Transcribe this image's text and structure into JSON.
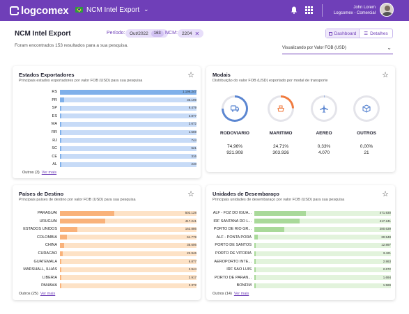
{
  "header": {
    "brand": "logcomex",
    "product": "NCM Intel Export",
    "user_name": "John Lorem",
    "user_company": "Logcomex - Comercial",
    "colors": {
      "primary": "#6f3fb8"
    }
  },
  "page": {
    "title": "NCM Intel Export",
    "period_label": "Período:",
    "period_value": "Out/2022",
    "period_badge": "163",
    "ncm_label": "NCM:",
    "ncm_value": "2204",
    "results_text": "Foram encontrados 153 resultados para a sua pesquisa.",
    "tab_dashboard": "Dashboard",
    "tab_details": "Detalhes",
    "viewing_select": "Visualizando por Valor FOB (USD)"
  },
  "states": {
    "title": "Estados Exportadores",
    "subtitle": "Principais estados exportadores por valor FOB (USD) para sua pesquisa",
    "bar_color": "#c7dbf7",
    "bar_fill": "#7fb0ea",
    "rows": [
      {
        "label": "RS",
        "value": "1.196.247",
        "ratio": 1.0
      },
      {
        "label": "PR",
        "value": "35.199",
        "ratio": 0.03
      },
      {
        "label": "SP",
        "value": "9.479",
        "ratio": 0.008
      },
      {
        "label": "ES",
        "value": "3.877",
        "ratio": 0.004
      },
      {
        "label": "MA",
        "value": "2.672",
        "ratio": 0.003
      },
      {
        "label": "RR",
        "value": "1.569",
        "ratio": 0.002
      },
      {
        "label": "RJ",
        "value": "744",
        "ratio": 0.001
      },
      {
        "label": "SC",
        "value": "621",
        "ratio": 0.001
      },
      {
        "label": "CE",
        "value": "316",
        "ratio": 0.0005
      },
      {
        "label": "AL",
        "value": "240",
        "ratio": 0.0003
      }
    ],
    "others": "Outros (3)",
    "more": "Ver mais"
  },
  "modals": {
    "title": "Modais",
    "subtitle": "Distribuição do valor FOB (USD) exportado por modal de transporte",
    "items": [
      {
        "name": "RODOVIARIO",
        "pct": "74,96%",
        "value": "921.908",
        "color": "#5b86d1",
        "fraction": 0.7496,
        "icon": "truck-icon"
      },
      {
        "name": "MARITIMO",
        "pct": "24,71%",
        "value": "303.926",
        "color": "#f07b3f",
        "fraction": 0.2471,
        "icon": "ship-icon"
      },
      {
        "name": "AEREO",
        "pct": "0,33%",
        "value": "4.070",
        "color": "#5b86d1",
        "fraction": 0.0033,
        "icon": "plane-icon"
      },
      {
        "name": "OUTROS",
        "pct": "0,00%",
        "value": "21",
        "color": "#5b86d1",
        "fraction": 0.0,
        "icon": "box-icon"
      }
    ]
  },
  "countries": {
    "title": "Países de Destino",
    "subtitle": "Principais países de destino por valor FOB (USD) para sua pesquisa",
    "bar_color": "#fde2c6",
    "bar_fill": "#f9b27a",
    "rows": [
      {
        "label": "PARAGUAI",
        "value": "502.128",
        "ratio": 0.4
      },
      {
        "label": "URUGUAI",
        "value": "417.241",
        "ratio": 0.33
      },
      {
        "label": "ESTADOS UNIDOS",
        "value": "162.886",
        "ratio": 0.13
      },
      {
        "label": "COLOMBIA",
        "value": "61.779",
        "ratio": 0.05
      },
      {
        "label": "CHINA",
        "value": "35.606",
        "ratio": 0.03
      },
      {
        "label": "CURACAO",
        "value": "22.946",
        "ratio": 0.018
      },
      {
        "label": "GUATEMALA",
        "value": "6.877",
        "ratio": 0.006
      },
      {
        "label": "MARSHALL, ILHAS",
        "value": "2.944",
        "ratio": 0.003
      },
      {
        "label": "LIBERIA",
        "value": "2.917",
        "ratio": 0.003
      },
      {
        "label": "PANAMA",
        "value": "2.372",
        "ratio": 0.002
      }
    ],
    "others": "Outros (25)",
    "more": "Ver mais"
  },
  "units": {
    "title": "Unidades de Desembaraço",
    "subtitle": "Principais unidades de desembaraço por valor FOB (USD) para sua pesquisa",
    "bar_color": "#e2f3dc",
    "bar_fill": "#a9d99a",
    "rows": [
      {
        "label": "ALF - FOZ DO IGUA...",
        "value": "471.930",
        "ratio": 0.38
      },
      {
        "label": "IRF SANTANA DO L...",
        "value": "417.241",
        "ratio": 0.33
      },
      {
        "label": "PORTO DE RIO GR...",
        "value": "280.639",
        "ratio": 0.22
      },
      {
        "label": "ALF - PONTA PORA",
        "value": "30.548",
        "ratio": 0.025
      },
      {
        "label": "PORTO DE SANTOS",
        "value": "12.897",
        "ratio": 0.01
      },
      {
        "label": "PORTO DE VITORIA",
        "value": "3.421",
        "ratio": 0.003
      },
      {
        "label": "AEROPORTO INTE...",
        "value": "2.863",
        "ratio": 0.002
      },
      {
        "label": "IRF SAO LUIS",
        "value": "2.672",
        "ratio": 0.002
      },
      {
        "label": "PORTO DE PARAN...",
        "value": "1.694",
        "ratio": 0.001
      },
      {
        "label": "BONFIM",
        "value": "1.569",
        "ratio": 0.001
      }
    ],
    "others": "Outros (14)",
    "more": "Ver mais"
  }
}
